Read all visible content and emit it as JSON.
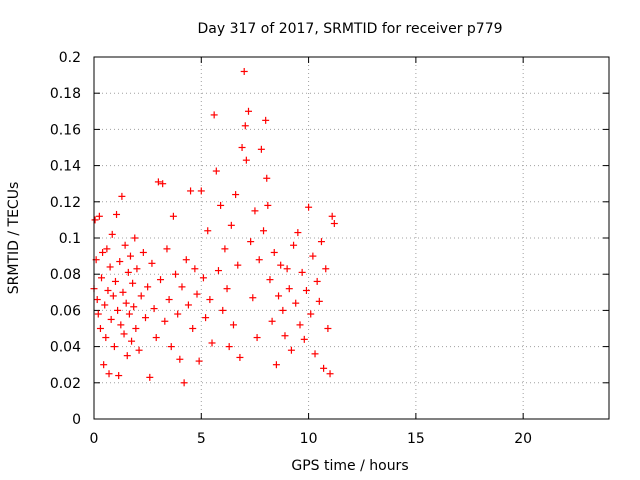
{
  "chart_data": {
    "type": "scatter",
    "title": "Day 317 of 2017, SRMTID for receiver p779",
    "xlabel": "GPS time / hours",
    "ylabel": "SRMTID / TECUs",
    "xlim": [
      0,
      24
    ],
    "ylim": [
      0,
      0.2
    ],
    "xticks": [
      0,
      5,
      10,
      15,
      20
    ],
    "yticks": [
      0,
      0.02,
      0.04,
      0.06,
      0.08,
      0.1,
      0.12,
      0.14,
      0.16,
      0.18,
      0.2
    ],
    "xtick_labels": [
      "0",
      "5",
      "10",
      "15",
      "20"
    ],
    "ytick_labels": [
      "0",
      "0.02",
      "0.04",
      "0.06",
      "0.08",
      "0.1",
      "0.12",
      "0.14",
      "0.16",
      "0.18",
      "0.2"
    ],
    "grid": true,
    "marker": "+",
    "color": "#ff0000",
    "series": [
      {
        "name": "SRMTID",
        "points": [
          [
            0.0,
            0.072
          ],
          [
            0.05,
            0.11
          ],
          [
            0.1,
            0.088
          ],
          [
            0.15,
            0.066
          ],
          [
            0.2,
            0.058
          ],
          [
            0.25,
            0.112
          ],
          [
            0.3,
            0.05
          ],
          [
            0.35,
            0.078
          ],
          [
            0.4,
            0.092
          ],
          [
            0.45,
            0.03
          ],
          [
            0.5,
            0.063
          ],
          [
            0.55,
            0.045
          ],
          [
            0.6,
            0.094
          ],
          [
            0.65,
            0.071
          ],
          [
            0.7,
            0.025
          ],
          [
            0.75,
            0.084
          ],
          [
            0.8,
            0.055
          ],
          [
            0.85,
            0.102
          ],
          [
            0.9,
            0.068
          ],
          [
            0.95,
            0.04
          ],
          [
            1.0,
            0.076
          ],
          [
            1.05,
            0.113
          ],
          [
            1.1,
            0.06
          ],
          [
            1.15,
            0.024
          ],
          [
            1.2,
            0.087
          ],
          [
            1.25,
            0.052
          ],
          [
            1.3,
            0.123
          ],
          [
            1.35,
            0.07
          ],
          [
            1.4,
            0.047
          ],
          [
            1.45,
            0.096
          ],
          [
            1.5,
            0.064
          ],
          [
            1.55,
            0.035
          ],
          [
            1.6,
            0.081
          ],
          [
            1.65,
            0.058
          ],
          [
            1.7,
            0.09
          ],
          [
            1.75,
            0.043
          ],
          [
            1.8,
            0.075
          ],
          [
            1.85,
            0.062
          ],
          [
            1.9,
            0.1
          ],
          [
            1.95,
            0.05
          ],
          [
            2.0,
            0.083
          ],
          [
            2.1,
            0.038
          ],
          [
            2.2,
            0.068
          ],
          [
            2.3,
            0.092
          ],
          [
            2.4,
            0.056
          ],
          [
            2.5,
            0.073
          ],
          [
            2.6,
            0.023
          ],
          [
            2.7,
            0.086
          ],
          [
            2.8,
            0.061
          ],
          [
            2.9,
            0.045
          ],
          [
            3.0,
            0.131
          ],
          [
            3.1,
            0.077
          ],
          [
            3.2,
            0.13
          ],
          [
            3.3,
            0.054
          ],
          [
            3.4,
            0.094
          ],
          [
            3.5,
            0.066
          ],
          [
            3.6,
            0.04
          ],
          [
            3.7,
            0.112
          ],
          [
            3.8,
            0.08
          ],
          [
            3.9,
            0.058
          ],
          [
            4.0,
            0.033
          ],
          [
            4.1,
            0.073
          ],
          [
            4.2,
            0.02
          ],
          [
            4.3,
            0.088
          ],
          [
            4.4,
            0.063
          ],
          [
            4.5,
            0.126
          ],
          [
            4.6,
            0.05
          ],
          [
            4.7,
            0.083
          ],
          [
            4.8,
            0.069
          ],
          [
            4.9,
            0.032
          ],
          [
            5.0,
            0.126
          ],
          [
            5.1,
            0.078
          ],
          [
            5.2,
            0.056
          ],
          [
            5.3,
            0.104
          ],
          [
            5.4,
            0.066
          ],
          [
            5.5,
            0.042
          ],
          [
            5.6,
            0.168
          ],
          [
            5.7,
            0.137
          ],
          [
            5.8,
            0.082
          ],
          [
            5.9,
            0.118
          ],
          [
            6.0,
            0.06
          ],
          [
            6.1,
            0.094
          ],
          [
            6.2,
            0.072
          ],
          [
            6.3,
            0.04
          ],
          [
            6.4,
            0.107
          ],
          [
            6.5,
            0.052
          ],
          [
            6.6,
            0.124
          ],
          [
            6.7,
            0.085
          ],
          [
            6.8,
            0.034
          ],
          [
            6.9,
            0.15
          ],
          [
            7.0,
            0.192
          ],
          [
            7.05,
            0.162
          ],
          [
            7.1,
            0.143
          ],
          [
            7.2,
            0.17
          ],
          [
            7.3,
            0.098
          ],
          [
            7.4,
            0.067
          ],
          [
            7.5,
            0.115
          ],
          [
            7.6,
            0.045
          ],
          [
            7.7,
            0.088
          ],
          [
            7.8,
            0.149
          ],
          [
            7.9,
            0.104
          ],
          [
            8.0,
            0.165
          ],
          [
            8.05,
            0.133
          ],
          [
            8.1,
            0.118
          ],
          [
            8.2,
            0.077
          ],
          [
            8.3,
            0.054
          ],
          [
            8.4,
            0.092
          ],
          [
            8.5,
            0.03
          ],
          [
            8.6,
            0.068
          ],
          [
            8.7,
            0.085
          ],
          [
            8.8,
            0.06
          ],
          [
            8.9,
            0.046
          ],
          [
            9.0,
            0.083
          ],
          [
            9.1,
            0.072
          ],
          [
            9.2,
            0.038
          ],
          [
            9.3,
            0.096
          ],
          [
            9.4,
            0.064
          ],
          [
            9.5,
            0.103
          ],
          [
            9.6,
            0.052
          ],
          [
            9.7,
            0.081
          ],
          [
            9.8,
            0.044
          ],
          [
            9.9,
            0.071
          ],
          [
            10.0,
            0.117
          ],
          [
            10.1,
            0.058
          ],
          [
            10.2,
            0.09
          ],
          [
            10.3,
            0.036
          ],
          [
            10.4,
            0.076
          ],
          [
            10.5,
            0.065
          ],
          [
            10.6,
            0.098
          ],
          [
            10.7,
            0.028
          ],
          [
            10.8,
            0.083
          ],
          [
            10.9,
            0.05
          ],
          [
            11.0,
            0.025
          ],
          [
            11.1,
            0.112
          ],
          [
            11.2,
            0.108
          ]
        ]
      }
    ]
  }
}
